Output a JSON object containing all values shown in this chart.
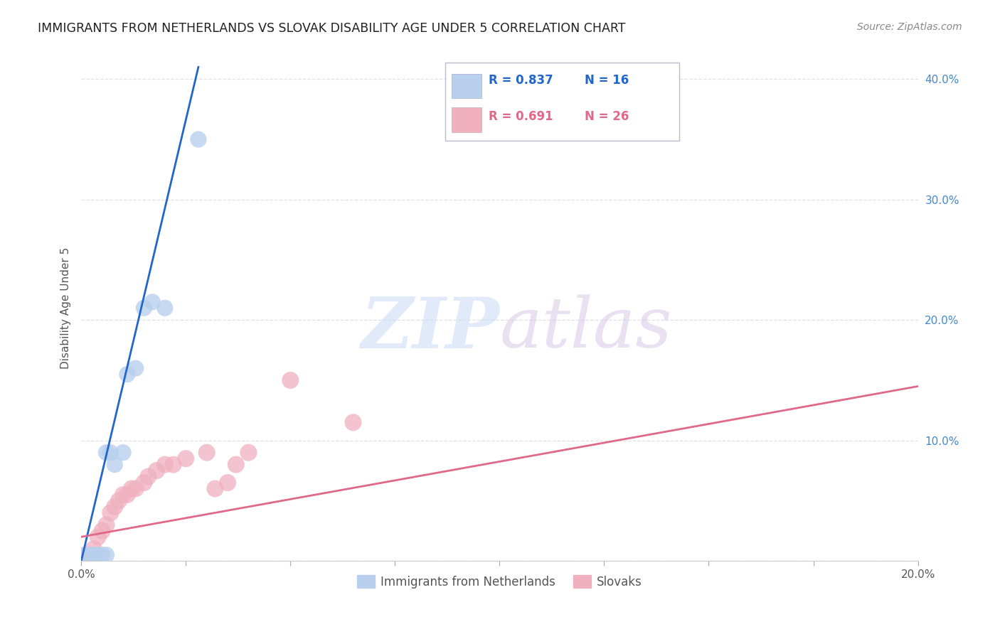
{
  "title": "IMMIGRANTS FROM NETHERLANDS VS SLOVAK DISABILITY AGE UNDER 5 CORRELATION CHART",
  "source": "Source: ZipAtlas.com",
  "ylabel": "Disability Age Under 5",
  "xlim": [
    0.0,
    0.2
  ],
  "ylim": [
    0.0,
    0.42
  ],
  "yticks": [
    0.0,
    0.1,
    0.2,
    0.3,
    0.4
  ],
  "ytick_labels": [
    "",
    "10.0%",
    "20.0%",
    "30.0%",
    "40.0%"
  ],
  "xticks": [
    0.0,
    0.025,
    0.05,
    0.075,
    0.1,
    0.125,
    0.15,
    0.175,
    0.2
  ],
  "background_color": "#ffffff",
  "grid_color": "#e0e0e8",
  "netherlands_color": "#b8d0ee",
  "netherlands_line_color": "#2266cc",
  "slovak_color": "#f0b0c0",
  "slovak_line_color": "#e06888",
  "netherlands_R": 0.837,
  "netherlands_N": 16,
  "slovak_R": 0.691,
  "slovak_N": 26,
  "netherlands_x": [
    0.001,
    0.002,
    0.003,
    0.004,
    0.005,
    0.006,
    0.006,
    0.007,
    0.008,
    0.01,
    0.011,
    0.013,
    0.015,
    0.017,
    0.02,
    0.028
  ],
  "netherlands_y": [
    0.005,
    0.005,
    0.005,
    0.005,
    0.005,
    0.005,
    0.09,
    0.09,
    0.08,
    0.09,
    0.155,
    0.16,
    0.21,
    0.215,
    0.21,
    0.35
  ],
  "slovak_x": [
    0.001,
    0.002,
    0.003,
    0.004,
    0.005,
    0.006,
    0.007,
    0.008,
    0.009,
    0.01,
    0.011,
    0.012,
    0.013,
    0.015,
    0.016,
    0.018,
    0.02,
    0.022,
    0.025,
    0.03,
    0.032,
    0.035,
    0.037,
    0.04,
    0.05,
    0.065
  ],
  "slovak_y": [
    0.005,
    0.005,
    0.01,
    0.02,
    0.025,
    0.03,
    0.04,
    0.045,
    0.05,
    0.055,
    0.055,
    0.06,
    0.06,
    0.065,
    0.07,
    0.075,
    0.08,
    0.08,
    0.085,
    0.09,
    0.06,
    0.065,
    0.08,
    0.09,
    0.15,
    0.115
  ],
  "nl_line_x": [
    0.0,
    0.028
  ],
  "nl_line_y": [
    0.0,
    0.41
  ],
  "sk_line_x": [
    0.0,
    0.2
  ],
  "sk_line_y": [
    0.02,
    0.145
  ],
  "watermark_zip": "ZIP",
  "watermark_atlas": "atlas",
  "legend_box_color": "#ffffff",
  "legend_border_color": "#cccccc"
}
